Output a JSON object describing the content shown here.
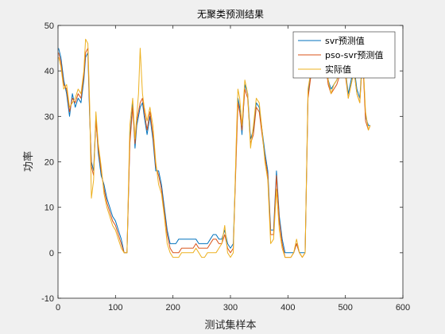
{
  "chart_data": {
    "type": "line",
    "title": "无聚类预测结果",
    "xlabel": "测试集样本",
    "ylabel": "功率",
    "xlim": [
      0,
      600
    ],
    "ylim": [
      -10,
      50
    ],
    "xticks": [
      0,
      100,
      200,
      300,
      400,
      500,
      600
    ],
    "yticks": [
      -10,
      0,
      10,
      20,
      30,
      40,
      50
    ],
    "grid": false,
    "legend_position": "top-right",
    "series": [
      {
        "name": "svr预测值",
        "color": "#0072BD",
        "x": [
          1,
          5,
          10,
          15,
          20,
          25,
          30,
          35,
          40,
          45,
          48,
          52,
          55,
          58,
          62,
          66,
          70,
          75,
          80,
          85,
          90,
          95,
          100,
          105,
          110,
          115,
          120,
          125,
          130,
          134,
          137,
          140,
          143,
          147,
          150,
          155,
          160,
          165,
          170,
          175,
          180,
          185,
          190,
          195,
          200,
          205,
          210,
          215,
          220,
          225,
          230,
          235,
          240,
          245,
          250,
          255,
          260,
          265,
          270,
          275,
          280,
          285,
          290,
          295,
          300,
          305,
          310,
          313,
          316,
          320,
          325,
          330,
          335,
          340,
          345,
          350,
          355,
          360,
          365,
          370,
          375,
          380,
          385,
          390,
          395,
          400,
          405,
          410,
          415,
          420,
          425,
          430,
          435,
          440,
          445,
          450,
          455,
          460,
          465,
          470,
          475,
          480,
          485,
          490,
          495,
          500,
          505,
          510,
          515,
          520,
          525,
          530,
          535,
          540,
          543
        ],
        "y": [
          45,
          43,
          38,
          35,
          30,
          35,
          32,
          34,
          33,
          38,
          43,
          44,
          30,
          20,
          18,
          30,
          22,
          17,
          15,
          12,
          10,
          8,
          7,
          5,
          3,
          0,
          0,
          25,
          33,
          23,
          28,
          30,
          32,
          33,
          30,
          26,
          30,
          25,
          18,
          18,
          15,
          10,
          5,
          2,
          2,
          2,
          3,
          3,
          3,
          3,
          3,
          3,
          3,
          2,
          2,
          2,
          2,
          3,
          4,
          4,
          3,
          3,
          5,
          2,
          1,
          2,
          22,
          34,
          32,
          26,
          37,
          35,
          25,
          27,
          33,
          32,
          27,
          22,
          18,
          5,
          5,
          18,
          8,
          3,
          0,
          0,
          0,
          0,
          2,
          0,
          0,
          0,
          35,
          40,
          42,
          44,
          42,
          40,
          43,
          38,
          36,
          37,
          38,
          40,
          42,
          40,
          35,
          38,
          41,
          36,
          34,
          44,
          30,
          28,
          28
        ]
      },
      {
        "name": "pso-svr预测值",
        "color": "#D95319",
        "x": [
          1,
          5,
          10,
          15,
          20,
          25,
          30,
          35,
          40,
          45,
          48,
          52,
          55,
          58,
          62,
          66,
          70,
          75,
          80,
          85,
          90,
          95,
          100,
          105,
          110,
          115,
          120,
          125,
          130,
          134,
          137,
          140,
          143,
          147,
          150,
          155,
          160,
          165,
          170,
          175,
          180,
          185,
          190,
          195,
          200,
          205,
          210,
          215,
          220,
          225,
          230,
          235,
          240,
          245,
          250,
          255,
          260,
          265,
          270,
          275,
          280,
          285,
          290,
          295,
          300,
          305,
          310,
          313,
          316,
          320,
          325,
          330,
          335,
          340,
          345,
          350,
          355,
          360,
          365,
          370,
          375,
          380,
          385,
          390,
          395,
          400,
          405,
          410,
          415,
          420,
          425,
          430,
          435,
          440,
          445,
          450,
          455,
          460,
          465,
          470,
          475,
          480,
          485,
          490,
          495,
          500,
          505,
          510,
          515,
          520,
          525,
          530,
          535,
          540,
          543
        ],
        "y": [
          44,
          42,
          37,
          36,
          31,
          34,
          33,
          35,
          34,
          39,
          44,
          45,
          31,
          19,
          17,
          29,
          23,
          18,
          14,
          11,
          9,
          7,
          6,
          4,
          2,
          0,
          0,
          24,
          32,
          24,
          29,
          31,
          33,
          34,
          31,
          27,
          31,
          26,
          19,
          17,
          14,
          9,
          4,
          1,
          0,
          0,
          0,
          1,
          1,
          1,
          1,
          1,
          2,
          1,
          1,
          1,
          1,
          2,
          3,
          3,
          2,
          2,
          4,
          1,
          0,
          1,
          21,
          33,
          31,
          27,
          36,
          34,
          24,
          26,
          32,
          31,
          26,
          21,
          17,
          4,
          4,
          17,
          7,
          2,
          -1,
          -1,
          -1,
          0,
          2,
          0,
          -1,
          0,
          34,
          39,
          41,
          43,
          41,
          39,
          42,
          37,
          35,
          36,
          37,
          39,
          41,
          39,
          34,
          37,
          40,
          35,
          33,
          43,
          29,
          27,
          28
        ]
      },
      {
        "name": "实际值",
        "color": "#EDB120",
        "x": [
          1,
          5,
          10,
          15,
          20,
          25,
          30,
          35,
          40,
          45,
          48,
          52,
          55,
          58,
          62,
          66,
          70,
          75,
          80,
          85,
          90,
          95,
          100,
          105,
          110,
          115,
          120,
          125,
          130,
          134,
          137,
          140,
          143,
          147,
          150,
          155,
          160,
          165,
          170,
          175,
          180,
          185,
          190,
          195,
          200,
          205,
          210,
          215,
          220,
          225,
          230,
          235,
          240,
          245,
          250,
          255,
          260,
          265,
          270,
          275,
          280,
          285,
          290,
          295,
          300,
          305,
          310,
          313,
          316,
          320,
          325,
          330,
          335,
          340,
          345,
          350,
          355,
          360,
          365,
          370,
          375,
          380,
          385,
          390,
          395,
          400,
          405,
          410,
          415,
          420,
          425,
          430,
          435,
          440,
          445,
          450,
          455,
          460,
          465,
          470,
          475,
          480,
          485,
          490,
          495,
          500,
          505,
          510,
          515,
          520,
          525,
          530,
          535,
          540,
          543
        ],
        "y": [
          43,
          41,
          36,
          37,
          32,
          33,
          34,
          36,
          35,
          40,
          47,
          46,
          33,
          12,
          16,
          31,
          24,
          19,
          13,
          10,
          8,
          6,
          5,
          3,
          1,
          0,
          0,
          28,
          34,
          25,
          30,
          35,
          45,
          35,
          32,
          29,
          32,
          28,
          20,
          15,
          13,
          8,
          2,
          0,
          -1,
          -1,
          -1,
          0,
          0,
          0,
          0,
          0,
          1,
          0,
          -1,
          -1,
          0,
          0,
          0,
          0,
          1,
          2,
          6,
          0,
          -1,
          0,
          24,
          36,
          34,
          28,
          38,
          35,
          23,
          28,
          34,
          33,
          27,
          20,
          16,
          2,
          3,
          14,
          5,
          1,
          -1,
          -1,
          -1,
          0,
          3,
          0,
          -1,
          0,
          36,
          40,
          42,
          46,
          43,
          40,
          44,
          38,
          35,
          37,
          38,
          40,
          42,
          40,
          34,
          37,
          40,
          35,
          33,
          44,
          31,
          27,
          28
        ]
      }
    ]
  }
}
